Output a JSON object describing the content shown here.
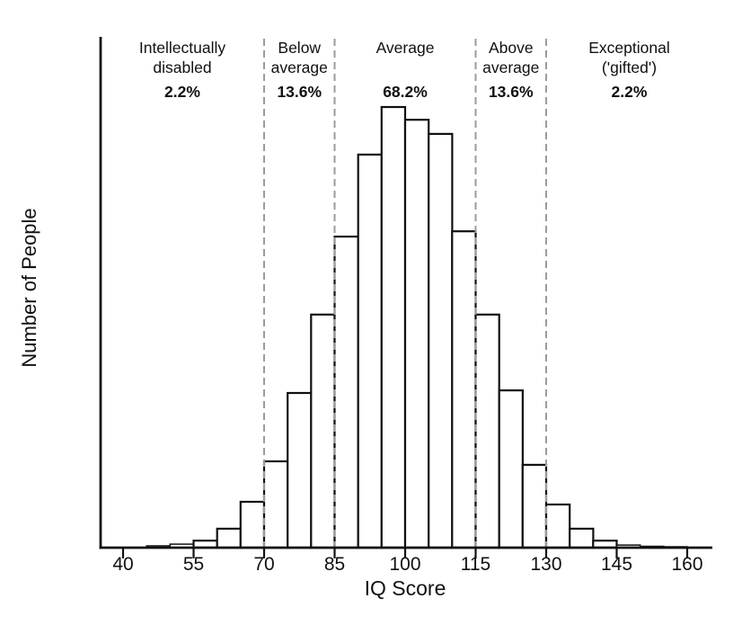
{
  "chart_data": {
    "type": "bar",
    "subtype": "histogram",
    "title": "",
    "xlabel": "IQ Score",
    "ylabel": "Number of People",
    "x_ticks": [
      40,
      55,
      70,
      85,
      100,
      115,
      130,
      145,
      160
    ],
    "xlim": [
      35,
      165
    ],
    "grid": false,
    "legend": false,
    "y_axis_tick_labels": "none",
    "bin_edges": [
      45,
      50,
      55,
      60,
      65,
      70,
      75,
      80,
      85,
      90,
      95,
      100,
      105,
      110,
      115,
      120,
      125,
      130,
      135,
      140,
      145,
      150,
      155,
      160
    ],
    "rel_heights": [
      0.004,
      0.008,
      0.016,
      0.043,
      0.104,
      0.196,
      0.351,
      0.529,
      0.706,
      0.892,
      1.0,
      0.971,
      0.939,
      0.718,
      0.529,
      0.357,
      0.188,
      0.098,
      0.043,
      0.016,
      0.006,
      0.003,
      0.002
    ],
    "divider_lines_x": [
      70,
      85,
      115,
      130
    ],
    "zones": [
      {
        "label_lines": [
          "Intellectually",
          "disabled"
        ],
        "percent": "2.2%",
        "x_range": [
          null,
          70
        ]
      },
      {
        "label_lines": [
          "Below",
          "average"
        ],
        "percent": "13.6%",
        "x_range": [
          70,
          85
        ]
      },
      {
        "label_lines": [
          "Average"
        ],
        "percent": "68.2%",
        "x_range": [
          85,
          115
        ]
      },
      {
        "label_lines": [
          "Above",
          "average"
        ],
        "percent": "13.6%",
        "x_range": [
          115,
          130
        ]
      },
      {
        "label_lines": [
          "Exceptional",
          "('gifted')"
        ],
        "percent": "2.2%",
        "x_range": [
          130,
          null
        ]
      }
    ],
    "colors": {
      "background": "#ffffff",
      "bar_fill": "#ffffff",
      "bar_stroke": "#111111",
      "axis": "#111111",
      "divider": "#9b9b9b",
      "text": "#111111"
    }
  }
}
